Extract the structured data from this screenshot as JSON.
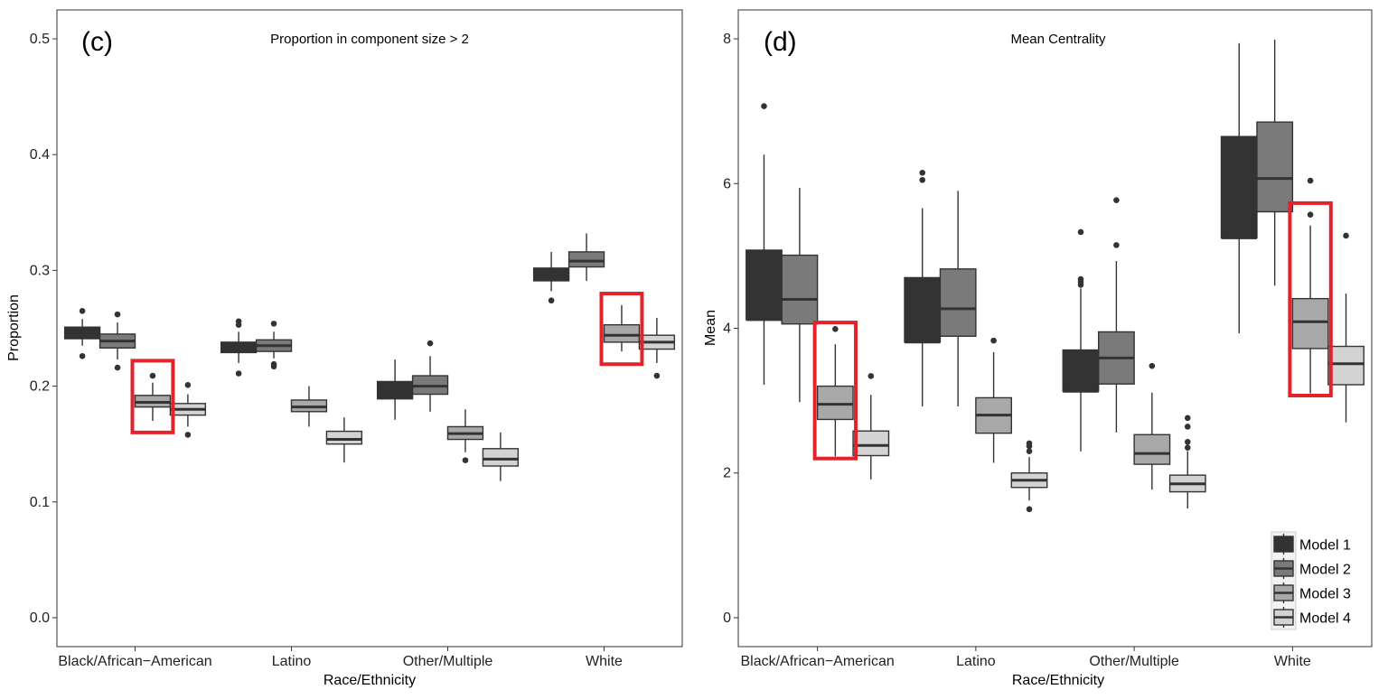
{
  "colors": {
    "model_1": "#333333",
    "model_2": "#7a7a7a",
    "model_3": "#a8a8a8",
    "model_4": "#d3d3d3",
    "highlight": "#e3222b",
    "frame": "#333333"
  },
  "legend": {
    "placement": "bottom-right",
    "items": [
      "Model 1",
      "Model 2",
      "Model 3",
      "Model 4"
    ]
  },
  "chart_data": [
    {
      "type": "box",
      "panel_label": "(c)",
      "title": "Proportion in component size > 2",
      "xlabel": "Race/Ethnicity",
      "ylabel": "Proportion",
      "ylim": [
        -0.025,
        0.525
      ],
      "yticks": [
        "0.0",
        "0.1",
        "0.2",
        "0.3",
        "0.4",
        "0.5"
      ],
      "ytick_values": [
        0,
        0.1,
        0.2,
        0.3,
        0.4,
        0.5
      ],
      "categories": [
        "Black/African−American",
        "Latino",
        "Other/Multiple",
        "White"
      ],
      "grid": false,
      "series": [
        {
          "name": "Model 1",
          "boxes": [
            {
              "min": 0.235,
              "q1": 0.241,
              "median": 0.246,
              "q3": 0.251,
              "max": 0.258,
              "outliers": [
                0.265,
                0.226
              ]
            },
            {
              "min": 0.22,
              "q1": 0.229,
              "median": 0.234,
              "q3": 0.238,
              "max": 0.247,
              "outliers": [
                0.256,
                0.253,
                0.211
              ]
            },
            {
              "min": 0.171,
              "q1": 0.189,
              "median": 0.194,
              "q3": 0.204,
              "max": 0.223,
              "outliers": []
            },
            {
              "min": 0.282,
              "q1": 0.291,
              "median": 0.297,
              "q3": 0.302,
              "max": 0.316,
              "outliers": [
                0.274
              ]
            }
          ]
        },
        {
          "name": "Model 2",
          "boxes": [
            {
              "min": 0.223,
              "q1": 0.233,
              "median": 0.239,
              "q3": 0.245,
              "max": 0.255,
              "outliers": [
                0.262,
                0.216
              ]
            },
            {
              "min": 0.224,
              "q1": 0.23,
              "median": 0.235,
              "q3": 0.24,
              "max": 0.247,
              "outliers": [
                0.254,
                0.219,
                0.217
              ]
            },
            {
              "min": 0.178,
              "q1": 0.193,
              "median": 0.2,
              "q3": 0.209,
              "max": 0.226,
              "outliers": [
                0.237
              ]
            },
            {
              "min": 0.291,
              "q1": 0.303,
              "median": 0.308,
              "q3": 0.316,
              "max": 0.332,
              "outliers": []
            }
          ]
        },
        {
          "name": "Model 3",
          "boxes": [
            {
              "min": 0.17,
              "q1": 0.182,
              "median": 0.186,
              "q3": 0.192,
              "max": 0.203,
              "outliers": [
                0.209
              ]
            },
            {
              "min": 0.165,
              "q1": 0.178,
              "median": 0.182,
              "q3": 0.188,
              "max": 0.2,
              "outliers": []
            },
            {
              "min": 0.143,
              "q1": 0.154,
              "median": 0.159,
              "q3": 0.165,
              "max": 0.18,
              "outliers": [
                0.136
              ]
            },
            {
              "min": 0.23,
              "q1": 0.238,
              "median": 0.244,
              "q3": 0.253,
              "max": 0.27,
              "outliers": []
            }
          ]
        },
        {
          "name": "Model 4",
          "boxes": [
            {
              "min": 0.165,
              "q1": 0.175,
              "median": 0.18,
              "q3": 0.185,
              "max": 0.193,
              "outliers": [
                0.201,
                0.158
              ]
            },
            {
              "min": 0.134,
              "q1": 0.15,
              "median": 0.154,
              "q3": 0.161,
              "max": 0.173,
              "outliers": []
            },
            {
              "min": 0.118,
              "q1": 0.131,
              "median": 0.137,
              "q3": 0.146,
              "max": 0.16,
              "outliers": []
            },
            {
              "min": 0.22,
              "q1": 0.232,
              "median": 0.238,
              "q3": 0.244,
              "max": 0.259,
              "outliers": [
                0.209
              ]
            }
          ]
        }
      ],
      "highlights": [
        {
          "category": "Black/African−American",
          "series": "Model 3",
          "y_range": [
            0.16,
            0.222
          ]
        },
        {
          "category": "White",
          "series": "Model 3",
          "y_range": [
            0.219,
            0.28
          ]
        }
      ]
    },
    {
      "type": "box",
      "panel_label": "(d)",
      "title": "Mean Centrality",
      "xlabel": "Race/Ethnicity",
      "ylabel": "Mean",
      "ylim": [
        -0.4,
        8.4
      ],
      "yticks": [
        "0",
        "2",
        "4",
        "6",
        "8"
      ],
      "ytick_values": [
        0,
        2,
        4,
        6,
        8
      ],
      "categories": [
        "Black/African−American",
        "Latino",
        "Other/Multiple",
        "White"
      ],
      "grid": false,
      "series": [
        {
          "name": "Model 1",
          "boxes": [
            {
              "min": 3.22,
              "q1": 4.12,
              "median": 4.12,
              "q3": 5.08,
              "max": 6.4,
              "outliers": [
                7.07
              ]
            },
            {
              "min": 2.92,
              "q1": 3.81,
              "median": 3.81,
              "q3": 4.7,
              "max": 5.66,
              "outliers": [
                6.15,
                6.05
              ]
            },
            {
              "min": 2.3,
              "q1": 3.13,
              "median": 3.13,
              "q3": 3.7,
              "max": 4.55,
              "outliers": [
                5.33,
                4.68,
                4.64,
                4.6
              ]
            },
            {
              "min": 3.93,
              "q1": 5.25,
              "median": 5.25,
              "q3": 6.65,
              "max": 7.94,
              "outliers": []
            }
          ]
        },
        {
          "name": "Model 2",
          "boxes": [
            {
              "min": 2.98,
              "q1": 4.06,
              "median": 4.4,
              "q3": 5.01,
              "max": 5.94,
              "outliers": []
            },
            {
              "min": 2.92,
              "q1": 3.89,
              "median": 4.27,
              "q3": 4.82,
              "max": 5.9,
              "outliers": []
            },
            {
              "min": 2.56,
              "q1": 3.23,
              "median": 3.59,
              "q3": 3.95,
              "max": 4.93,
              "outliers": [
                5.77,
                5.15
              ]
            },
            {
              "min": 4.59,
              "q1": 5.61,
              "median": 6.07,
              "q3": 6.85,
              "max": 7.99,
              "outliers": []
            }
          ]
        },
        {
          "name": "Model 3",
          "boxes": [
            {
              "min": 2.23,
              "q1": 2.74,
              "median": 2.95,
              "q3": 3.2,
              "max": 3.78,
              "outliers": [
                3.99
              ]
            },
            {
              "min": 2.14,
              "q1": 2.55,
              "median": 2.8,
              "q3": 3.04,
              "max": 3.67,
              "outliers": [
                3.83
              ]
            },
            {
              "min": 1.77,
              "q1": 2.12,
              "median": 2.27,
              "q3": 2.53,
              "max": 3.11,
              "outliers": [
                3.48
              ]
            },
            {
              "min": 3.1,
              "q1": 3.72,
              "median": 4.09,
              "q3": 4.41,
              "max": 5.42,
              "outliers": [
                6.04,
                5.57
              ]
            }
          ]
        },
        {
          "name": "Model 4",
          "boxes": [
            {
              "min": 1.91,
              "q1": 2.24,
              "median": 2.38,
              "q3": 2.58,
              "max": 3.08,
              "outliers": [
                3.34
              ]
            },
            {
              "min": 1.62,
              "q1": 1.8,
              "median": 1.9,
              "q3": 2.0,
              "max": 2.22,
              "outliers": [
                2.41,
                2.37,
                2.3,
                1.5
              ]
            },
            {
              "min": 1.51,
              "q1": 1.74,
              "median": 1.85,
              "q3": 1.97,
              "max": 2.3,
              "outliers": [
                2.76,
                2.64,
                2.43,
                2.35
              ]
            },
            {
              "min": 2.7,
              "q1": 3.22,
              "median": 3.51,
              "q3": 3.75,
              "max": 4.48,
              "outliers": [
                5.28
              ]
            }
          ]
        }
      ],
      "highlights": [
        {
          "category": "Black/African−American",
          "series": "Model 3",
          "y_range": [
            2.2,
            4.08
          ]
        },
        {
          "category": "White",
          "series": "Model 3",
          "y_range": [
            3.07,
            5.73
          ]
        }
      ]
    }
  ]
}
